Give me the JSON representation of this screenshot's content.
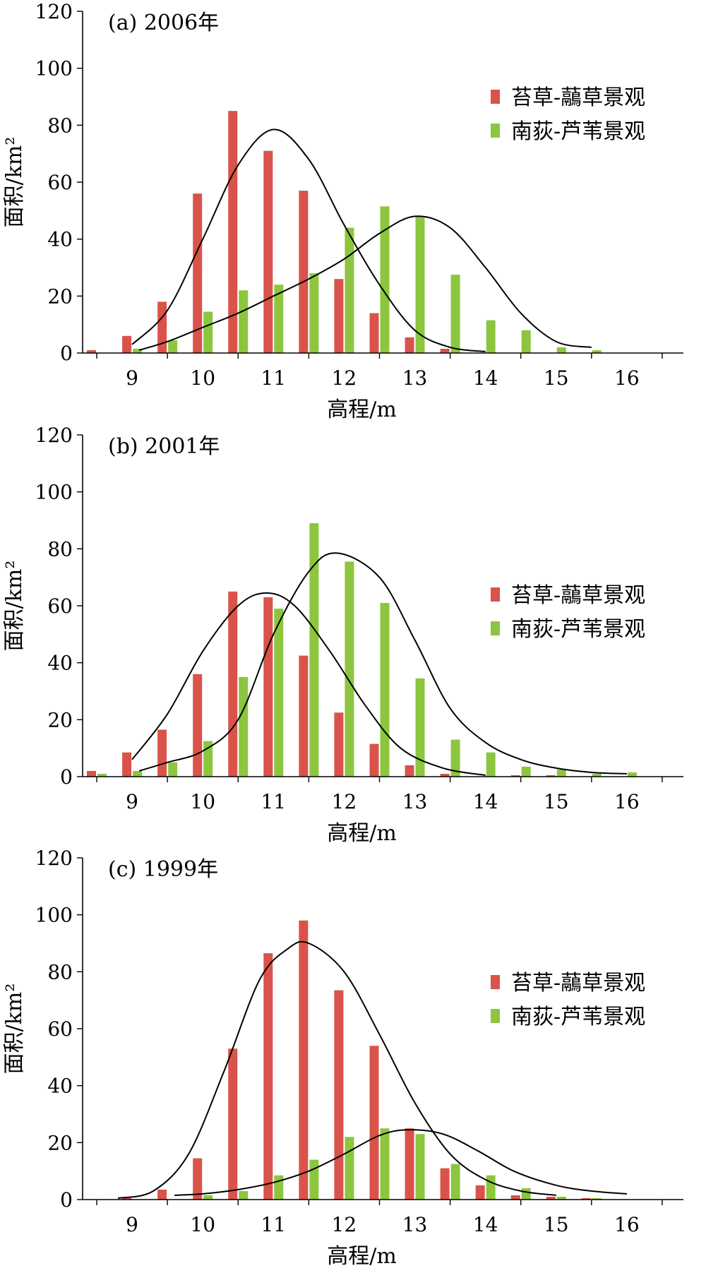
{
  "colors": {
    "red": "#d9534a",
    "green": "#8cc63f",
    "axis": "#000000",
    "curve": "#000000"
  },
  "legend_placement": "top-right",
  "chart_data": [
    {
      "type": "bar",
      "title": "(a) 2006年",
      "xlabel": "高程/m",
      "ylabel": "面积/km²",
      "ylim": [
        0,
        120
      ],
      "xlim": [
        8.3,
        16.8
      ],
      "yticks": [
        "0",
        "20",
        "40",
        "60",
        "80",
        "100",
        "120"
      ],
      "xticks": [
        "9",
        "10",
        "11",
        "12",
        "13",
        "14",
        "15",
        "16"
      ],
      "bar_x": [
        8.5,
        9.0,
        9.5,
        10.0,
        10.5,
        11.0,
        11.5,
        12.0,
        12.5,
        13.0,
        13.5,
        14.0,
        14.5,
        15.0,
        15.5
      ],
      "series": [
        {
          "name": "苔草-虉草景观",
          "color": "red",
          "values": [
            1,
            6,
            18,
            56,
            85,
            71,
            57,
            26,
            14,
            5.5,
            1.5,
            0,
            0,
            0,
            0
          ],
          "curve": [
            [
              9.0,
              3
            ],
            [
              9.5,
              15
            ],
            [
              10.0,
              40
            ],
            [
              10.5,
              66
            ],
            [
              11.0,
              78.5
            ],
            [
              11.5,
              68
            ],
            [
              12.0,
              45
            ],
            [
              12.5,
              24
            ],
            [
              13.0,
              8
            ],
            [
              13.5,
              2
            ],
            [
              14.0,
              0.5
            ]
          ]
        },
        {
          "name": "南荻-芦苇景观",
          "color": "green",
          "values": [
            0,
            1.5,
            4.5,
            14.5,
            22,
            24,
            28,
            44,
            51.5,
            48,
            27.5,
            11.5,
            8,
            2,
            1
          ],
          "curve": [
            [
              9.1,
              1
            ],
            [
              9.5,
              4
            ],
            [
              10.0,
              9
            ],
            [
              10.5,
              14
            ],
            [
              11.0,
              20
            ],
            [
              11.5,
              26
            ],
            [
              12.0,
              33
            ],
            [
              12.5,
              42
            ],
            [
              13.0,
              48
            ],
            [
              13.5,
              44
            ],
            [
              14.0,
              30
            ],
            [
              14.5,
              14
            ],
            [
              15.0,
              4
            ],
            [
              15.5,
              2
            ]
          ]
        }
      ]
    },
    {
      "type": "bar",
      "title": "(b) 2001年",
      "xlabel": "高程/m",
      "ylabel": "面积/km²",
      "ylim": [
        0,
        120
      ],
      "xlim": [
        8.3,
        16.8
      ],
      "yticks": [
        "0",
        "20",
        "40",
        "60",
        "80",
        "100",
        "120"
      ],
      "xticks": [
        "9",
        "10",
        "11",
        "12",
        "13",
        "14",
        "15",
        "16"
      ],
      "bar_x": [
        8.5,
        9.0,
        9.5,
        10.0,
        10.5,
        11.0,
        11.5,
        12.0,
        12.5,
        13.0,
        13.5,
        14.0,
        14.5,
        15.0,
        15.5,
        16.0
      ],
      "series": [
        {
          "name": "苔草-虉草景观",
          "color": "red",
          "values": [
            2,
            8.5,
            16.5,
            36,
            65,
            63,
            42.5,
            22.5,
            11.5,
            4,
            1,
            0,
            0.5,
            0.5,
            0,
            0
          ],
          "curve": [
            [
              9.0,
              6
            ],
            [
              9.5,
              22
            ],
            [
              10.0,
              44
            ],
            [
              10.5,
              60
            ],
            [
              10.9,
              64.5
            ],
            [
              11.3,
              60
            ],
            [
              11.8,
              44
            ],
            [
              12.3,
              25
            ],
            [
              12.8,
              10
            ],
            [
              13.4,
              3
            ],
            [
              14.0,
              0.5
            ]
          ]
        },
        {
          "name": "南荻-芦苇景观",
          "color": "green",
          "values": [
            1,
            2,
            5,
            12.5,
            35,
            59,
            89,
            75.5,
            61,
            34.5,
            13,
            8.5,
            3.5,
            2.5,
            1,
            1.5
          ],
          "curve": [
            [
              9.1,
              2
            ],
            [
              9.5,
              5
            ],
            [
              10.0,
              9
            ],
            [
              10.5,
              20
            ],
            [
              11.0,
              50
            ],
            [
              11.5,
              72
            ],
            [
              11.9,
              78.5
            ],
            [
              12.5,
              70
            ],
            [
              13.0,
              48
            ],
            [
              13.5,
              24
            ],
            [
              14.0,
              12
            ],
            [
              14.5,
              6
            ],
            [
              15.0,
              3
            ],
            [
              15.5,
              1.5
            ],
            [
              16.0,
              1
            ]
          ]
        }
      ]
    },
    {
      "type": "bar",
      "title": "(c) 1999年",
      "xlabel": "高程/m",
      "ylabel": "面积/km²",
      "ylim": [
        0,
        120
      ],
      "xlim": [
        8.3,
        16.8
      ],
      "yticks": [
        "0",
        "20",
        "40",
        "60",
        "80",
        "100",
        "120"
      ],
      "xticks": [
        "9",
        "10",
        "11",
        "12",
        "13",
        "14",
        "15",
        "16"
      ],
      "bar_x": [
        9.0,
        9.5,
        10.0,
        10.5,
        11.0,
        11.5,
        12.0,
        12.5,
        13.0,
        13.5,
        14.0,
        14.5,
        15.0,
        15.5,
        16.0
      ],
      "series": [
        {
          "name": "苔草-虉草景观",
          "color": "red",
          "values": [
            0.5,
            3.5,
            14.5,
            53,
            86.5,
            98,
            73.5,
            54,
            25,
            11,
            5,
            1.5,
            1,
            0.5,
            0
          ],
          "curve": [
            [
              8.8,
              0.5
            ],
            [
              9.3,
              3
            ],
            [
              9.8,
              16
            ],
            [
              10.3,
              45
            ],
            [
              10.8,
              77
            ],
            [
              11.2,
              88
            ],
            [
              11.5,
              90
            ],
            [
              12.0,
              80
            ],
            [
              12.5,
              58
            ],
            [
              13.0,
              34
            ],
            [
              13.5,
              16
            ],
            [
              14.0,
              7
            ],
            [
              14.5,
              3
            ],
            [
              15.0,
              1.5
            ]
          ]
        },
        {
          "name": "南荻-芦苇景观",
          "color": "green",
          "values": [
            0,
            0,
            1.5,
            3,
            8.5,
            14,
            22,
            25,
            23,
            12.5,
            8.5,
            4,
            1,
            0.5,
            0
          ],
          "curve": [
            [
              9.6,
              1.5
            ],
            [
              10.0,
              2
            ],
            [
              10.5,
              3.5
            ],
            [
              11.0,
              6
            ],
            [
              11.5,
              10
            ],
            [
              12.0,
              16
            ],
            [
              12.5,
              22.5
            ],
            [
              12.9,
              24.5
            ],
            [
              13.4,
              23
            ],
            [
              13.9,
              17
            ],
            [
              14.4,
              10
            ],
            [
              15.0,
              5
            ],
            [
              15.5,
              3
            ],
            [
              16.0,
              2
            ]
          ]
        }
      ]
    }
  ]
}
